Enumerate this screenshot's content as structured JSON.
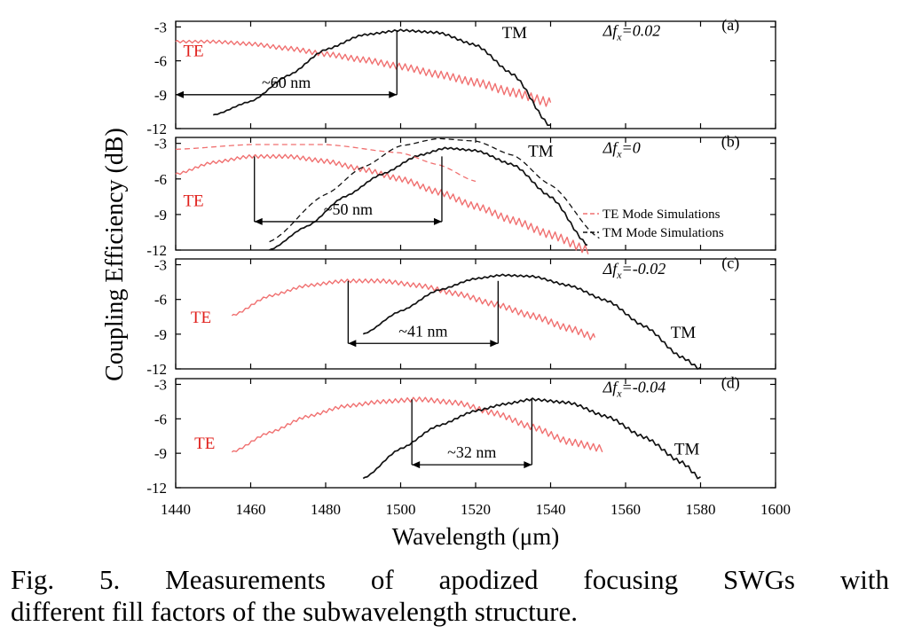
{
  "figure": {
    "ylabel": "Coupling Efficiency (dB)",
    "xlabel": "Wavelength (μm)",
    "x_ticks": [
      1440,
      1460,
      1480,
      1500,
      1520,
      1540,
      1560,
      1580,
      1600
    ],
    "y_ticks": [
      -3,
      -6,
      -9,
      -12
    ]
  },
  "caption": {
    "line1": "Fig. 5.  Measurements of apodized focusing SWGs with",
    "line2": "different fill factors of the subwavelength structure."
  },
  "legend": {
    "te_sim": "TE Mode Simulations",
    "tm_sim": "TM Mode Simulations"
  },
  "colors": {
    "te": "#f07070",
    "tm": "#111111",
    "te_label": "#e0201c"
  },
  "chart_data": [
    {
      "type": "line",
      "panel": "(a)",
      "delta_prefix": "Δf",
      "delta_sub": "x",
      "delta_value": "=0.02",
      "xlim": [
        1440,
        1600
      ],
      "ylim": [
        -12,
        -2.5
      ],
      "te_label": "TE",
      "tm_label": "TM",
      "bandwidth_label": "~60 nm",
      "bandwidth": {
        "x1": 1440,
        "x2": 1499,
        "y": -9.0,
        "y_top": -3.3
      },
      "series": [
        {
          "name": "TE",
          "x": [
            1440,
            1450,
            1460,
            1470,
            1480,
            1490,
            1500,
            1510,
            1520,
            1530,
            1540
          ],
          "y": [
            -4.3,
            -4.3,
            -4.5,
            -4.9,
            -5.4,
            -5.9,
            -6.5,
            -7.2,
            -7.9,
            -8.8,
            -9.7
          ],
          "ripple": 0.4
        },
        {
          "name": "TM",
          "x": [
            1450,
            1460,
            1470,
            1480,
            1490,
            1500,
            1510,
            1520,
            1530,
            1540
          ],
          "y": [
            -10.8,
            -9.6,
            -7.3,
            -5.0,
            -3.7,
            -3.3,
            -3.5,
            -4.6,
            -7.2,
            -11.8
          ],
          "ripple": 0.12
        }
      ],
      "label_pos": {
        "te": [
          1442,
          -5.6
        ],
        "tm": [
          1527,
          -4.0
        ],
        "delta": [
          1554,
          -3.8
        ],
        "panel": [
          1588,
          -3.3
        ]
      }
    },
    {
      "type": "line",
      "panel": "(b)",
      "delta_prefix": "Δf",
      "delta_sub": "x",
      "delta_value": "=0",
      "xlim": [
        1440,
        1600
      ],
      "ylim": [
        -12,
        -2.5
      ],
      "te_label": "TE",
      "tm_label": "TM",
      "bandwidth_label": "~50 nm",
      "bandwidth": {
        "x1": 1461,
        "x2": 1511,
        "y": -9.6,
        "y_top": -4.1
      },
      "series": [
        {
          "name": "TE",
          "x": [
            1440,
            1450,
            1460,
            1470,
            1480,
            1490,
            1500,
            1510,
            1520,
            1530,
            1540,
            1550
          ],
          "y": [
            -5.6,
            -4.6,
            -4.1,
            -4.1,
            -4.5,
            -5.2,
            -6.0,
            -7.1,
            -8.3,
            -9.5,
            -10.7,
            -12.0
          ],
          "ripple": 0.35
        },
        {
          "name": "TM",
          "x": [
            1465,
            1475,
            1485,
            1495,
            1505,
            1512,
            1520,
            1530,
            1540,
            1550
          ],
          "y": [
            -12.0,
            -10.0,
            -7.5,
            -5.6,
            -4.0,
            -3.4,
            -3.6,
            -4.8,
            -7.5,
            -11.6
          ],
          "ripple": 0.1
        },
        {
          "name": "TE Mode Simulations",
          "dashed": true,
          "x": [
            1440,
            1460,
            1480,
            1500,
            1510,
            1520
          ],
          "y": [
            -3.5,
            -3.1,
            -3.1,
            -3.8,
            -4.8,
            -6.2
          ],
          "ripple": 0
        },
        {
          "name": "TM Mode Simulations",
          "dashed": true,
          "x": [
            1465,
            1480,
            1490,
            1500,
            1510,
            1520,
            1530,
            1540,
            1553
          ],
          "y": [
            -11.3,
            -7.3,
            -5.0,
            -3.2,
            -2.6,
            -2.8,
            -4.0,
            -6.5,
            -11.0
          ],
          "ripple": 0
        }
      ],
      "label_pos": {
        "te": [
          1442,
          -8.3
        ],
        "tm": [
          1534,
          -4.1
        ],
        "delta": [
          1554,
          -3.8
        ],
        "panel": [
          1588,
          -3.3
        ]
      }
    },
    {
      "type": "line",
      "panel": "(c)",
      "delta_prefix": "Δf",
      "delta_sub": "x",
      "delta_value": "=-0.02",
      "xlim": [
        1440,
        1600
      ],
      "ylim": [
        -12,
        -2.5
      ],
      "te_label": "TE",
      "tm_label": "TM",
      "bandwidth_label": "~41 nm",
      "bandwidth": {
        "x1": 1486,
        "x2": 1526,
        "y": -9.8,
        "y_top": -4.4
      },
      "series": [
        {
          "name": "TE",
          "x": [
            1455,
            1465,
            1475,
            1485,
            1495,
            1505,
            1515,
            1525,
            1535,
            1545,
            1552
          ],
          "y": [
            -7.4,
            -5.7,
            -4.8,
            -4.4,
            -4.4,
            -4.8,
            -5.5,
            -6.4,
            -7.4,
            -8.5,
            -9.3
          ],
          "ripple": 0.3
        },
        {
          "name": "TM",
          "x": [
            1490,
            1500,
            1510,
            1520,
            1527,
            1535,
            1545,
            1555,
            1565,
            1575,
            1580
          ],
          "y": [
            -9.0,
            -7.0,
            -5.2,
            -4.2,
            -3.9,
            -4.0,
            -4.8,
            -6.1,
            -8.3,
            -11.0,
            -12.0
          ],
          "ripple": 0.12
        }
      ],
      "label_pos": {
        "te": [
          1444,
          -8.0
        ],
        "tm": [
          1572,
          -9.3
        ],
        "delta": [
          1554,
          -3.8
        ],
        "panel": [
          1588,
          -3.3
        ]
      }
    },
    {
      "type": "line",
      "panel": "(d)",
      "delta_prefix": "Δf",
      "delta_sub": "x",
      "delta_value": "=-0.04",
      "xlim": [
        1440,
        1600
      ],
      "ylim": [
        -12,
        -2.5
      ],
      "te_label": "TE",
      "tm_label": "TM",
      "bandwidth_label": "~32 nm",
      "bandwidth": {
        "x1": 1503,
        "x2": 1535,
        "y": -10.0,
        "y_top": -4.3
      },
      "series": [
        {
          "name": "TE",
          "x": [
            1455,
            1465,
            1475,
            1485,
            1495,
            1505,
            1515,
            1525,
            1535,
            1545,
            1554
          ],
          "y": [
            -8.9,
            -7.2,
            -5.8,
            -4.9,
            -4.5,
            -4.3,
            -4.6,
            -5.5,
            -6.7,
            -8.0,
            -8.6
          ],
          "ripple": 0.3
        },
        {
          "name": "TM",
          "x": [
            1490,
            1500,
            1510,
            1520,
            1528,
            1535,
            1545,
            1555,
            1565,
            1575,
            1580
          ],
          "y": [
            -11.2,
            -8.6,
            -6.6,
            -5.3,
            -4.7,
            -4.3,
            -4.6,
            -5.8,
            -7.6,
            -9.8,
            -11.2
          ],
          "ripple": 0.15
        }
      ],
      "label_pos": {
        "te": [
          1445,
          -8.6
        ],
        "tm": [
          1573,
          -9.1
        ],
        "delta": [
          1554,
          -3.7
        ],
        "panel": [
          1588,
          -3.3
        ]
      }
    }
  ]
}
